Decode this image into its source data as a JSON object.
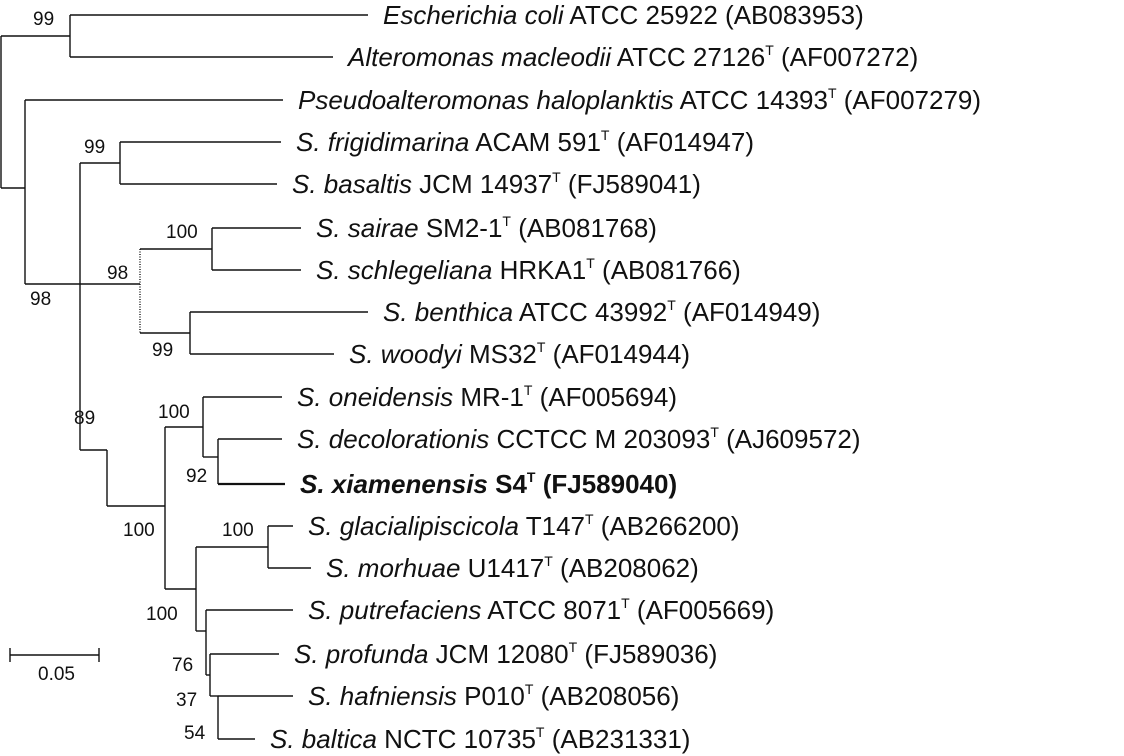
{
  "diagram": {
    "type": "phylogenetic-tree",
    "taxa": [
      {
        "id": "t1",
        "genus": "Escherichia coli",
        "strain": "ATCC 25922",
        "type_strain": false,
        "accession": "(AB083953)",
        "bold": false
      },
      {
        "id": "t2",
        "genus": "Alteromonas macleodii",
        "strain": "ATCC 27126",
        "type_strain": true,
        "accession": "(AF007272)",
        "bold": false
      },
      {
        "id": "t3",
        "genus": "Pseudoalteromonas haloplanktis",
        "strain": "ATCC 14393",
        "type_strain": true,
        "accession": "(AF007279)",
        "bold": false
      },
      {
        "id": "t4",
        "genus": "S. frigidimarina",
        "strain": "ACAM 591",
        "type_strain": true,
        "accession": "(AF014947)",
        "bold": false
      },
      {
        "id": "t5",
        "genus": "S. basaltis",
        "strain": "JCM 14937",
        "type_strain": true,
        "accession": "(FJ589041)",
        "bold": false
      },
      {
        "id": "t6",
        "genus": "S. sairae",
        "strain": "SM2-1",
        "type_strain": true,
        "accession": "(AB081768)",
        "bold": false
      },
      {
        "id": "t7",
        "genus": "S. schlegeliana",
        "strain": "HRKA1",
        "type_strain": true,
        "accession": "(AB081766)",
        "bold": false
      },
      {
        "id": "t8",
        "genus": "S. benthica",
        "strain": "ATCC 43992",
        "type_strain": true,
        "accession": "(AF014949)",
        "bold": false
      },
      {
        "id": "t9",
        "genus": "S. woodyi",
        "strain": "MS32",
        "type_strain": true,
        "accession": "(AF014944)",
        "bold": false
      },
      {
        "id": "t10",
        "genus": "S. oneidensis",
        "strain": "MR-1",
        "type_strain": true,
        "accession": "(AF005694)",
        "bold": false
      },
      {
        "id": "t11",
        "genus": "S. decolorationis",
        "strain": "CCTCC M 203093",
        "type_strain": true,
        "accession": "(AJ609572)",
        "bold": false
      },
      {
        "id": "t12",
        "genus": "S. xiamenensis",
        "strain": "S4",
        "type_strain": true,
        "accession": "(FJ589040)",
        "bold": true
      },
      {
        "id": "t13",
        "genus": "S. glacialipiscicola",
        "strain": "T147",
        "type_strain": true,
        "accession": "(AB266200)",
        "bold": false
      },
      {
        "id": "t14",
        "genus": "S. morhuae",
        "strain": "U1417",
        "type_strain": true,
        "accession": "(AB208062)",
        "bold": false
      },
      {
        "id": "t15",
        "genus": "S. putrefaciens",
        "strain": "ATCC 8071",
        "type_strain": true,
        "accession": "(AF005669)",
        "bold": false
      },
      {
        "id": "t16",
        "genus": "S. profunda",
        "strain": "JCM 12080",
        "type_strain": true,
        "accession": "(FJ589036)",
        "bold": false
      },
      {
        "id": "t17",
        "genus": "S. hafniensis",
        "strain": "P010",
        "type_strain": true,
        "accession": "(AB208056)",
        "bold": false
      },
      {
        "id": "t18",
        "genus": "S. baltica",
        "strain": "NCTC 10735",
        "type_strain": true,
        "accession": "(AB231331)",
        "bold": false
      }
    ],
    "type_superscript": "T",
    "bootstrap_values": [
      "99",
      "99",
      "100",
      "98",
      "98",
      "99",
      "89",
      "100",
      "92",
      "100",
      "100",
      "100",
      "76",
      "37",
      "54"
    ],
    "scale_bar": {
      "label": "0.05"
    }
  }
}
